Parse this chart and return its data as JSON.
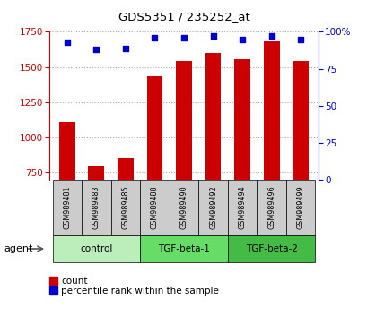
{
  "title": "GDS5351 / 235252_at",
  "samples": [
    "GSM989481",
    "GSM989483",
    "GSM989485",
    "GSM989488",
    "GSM989490",
    "GSM989492",
    "GSM989494",
    "GSM989496",
    "GSM989499"
  ],
  "counts": [
    1110,
    795,
    855,
    1435,
    1545,
    1600,
    1555,
    1680,
    1545
  ],
  "percentiles": [
    93,
    88,
    89,
    96,
    96,
    97,
    95,
    97,
    95
  ],
  "ylim_left": [
    700,
    1750
  ],
  "ylim_right": [
    0,
    100
  ],
  "yticks_left": [
    750,
    1000,
    1250,
    1500,
    1750
  ],
  "yticks_right": [
    0,
    25,
    50,
    75,
    100
  ],
  "groups": [
    {
      "label": "control",
      "indices": [
        0,
        1,
        2
      ],
      "color": "#bbeebb"
    },
    {
      "label": "TGF-beta-1",
      "indices": [
        3,
        4,
        5
      ],
      "color": "#66dd66"
    },
    {
      "label": "TGF-beta-2",
      "indices": [
        6,
        7,
        8
      ],
      "color": "#44bb44"
    }
  ],
  "bar_color": "#cc0000",
  "dot_color": "#0000cc",
  "bar_width": 0.55,
  "background_color": "#ffffff",
  "left_axis_color": "#cc0000",
  "right_axis_color": "#0000cc",
  "grid_color": "#aaaaaa",
  "sample_box_color": "#cccccc",
  "agent_label": "agent",
  "legend_count": "count",
  "legend_percentile": "percentile rank within the sample"
}
